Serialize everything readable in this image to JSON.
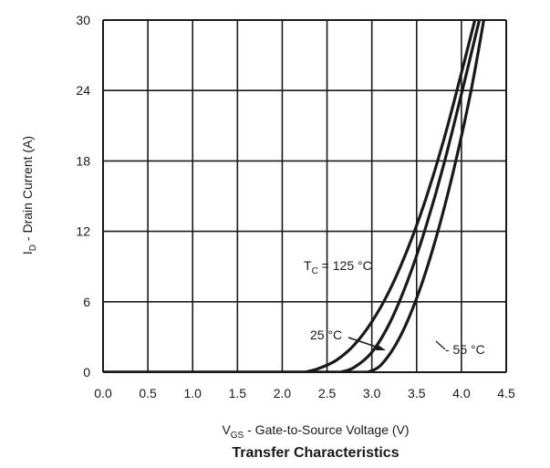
{
  "chart_data": {
    "type": "line",
    "title": "Transfer Characteristics",
    "xlabel": {
      "main": "V",
      "sub": "GS",
      "rest": " - Gate-to-Source Voltage (V)"
    },
    "ylabel": {
      "main": "I",
      "sub": "D",
      "rest": " - Drain Current (A)"
    },
    "xlim": [
      0.0,
      4.5
    ],
    "ylim": [
      0,
      30
    ],
    "x_ticks": [
      "0.0",
      "0.5",
      "1.0",
      "1.5",
      "2.0",
      "2.5",
      "3.0",
      "3.5",
      "4.0",
      "4.5"
    ],
    "y_ticks": [
      "0",
      "6",
      "12",
      "18",
      "24",
      "30"
    ],
    "grid": true,
    "series": [
      {
        "name": "T_C = 125 °C",
        "label": {
          "main": "T",
          "sub": "C",
          "rest": " = 125 °C"
        },
        "x": [
          2.25,
          2.4,
          2.6,
          2.8,
          3.0,
          3.2,
          3.4,
          3.6,
          3.8,
          4.0,
          4.15
        ],
        "y": [
          0,
          0.3,
          1.0,
          2.3,
          4.3,
          7.0,
          10.5,
          14.7,
          19.7,
          25.5,
          30
        ]
      },
      {
        "name": "25 °C",
        "label": {
          "main": "25 °C",
          "sub": "",
          "rest": ""
        },
        "x": [
          2.65,
          2.8,
          3.0,
          3.2,
          3.4,
          3.6,
          3.8,
          4.0,
          4.2
        ],
        "y": [
          0,
          0.4,
          1.7,
          4.2,
          7.8,
          12.3,
          17.6,
          23.7,
          30
        ]
      },
      {
        "name": "- 55 °C",
        "label": {
          "main": "- 55 °C",
          "sub": "",
          "rest": ""
        },
        "x": [
          2.95,
          3.1,
          3.3,
          3.5,
          3.7,
          3.9,
          4.1,
          4.25
        ],
        "y": [
          0,
          0.6,
          2.8,
          6.3,
          11.0,
          16.8,
          23.7,
          30
        ]
      }
    ]
  }
}
